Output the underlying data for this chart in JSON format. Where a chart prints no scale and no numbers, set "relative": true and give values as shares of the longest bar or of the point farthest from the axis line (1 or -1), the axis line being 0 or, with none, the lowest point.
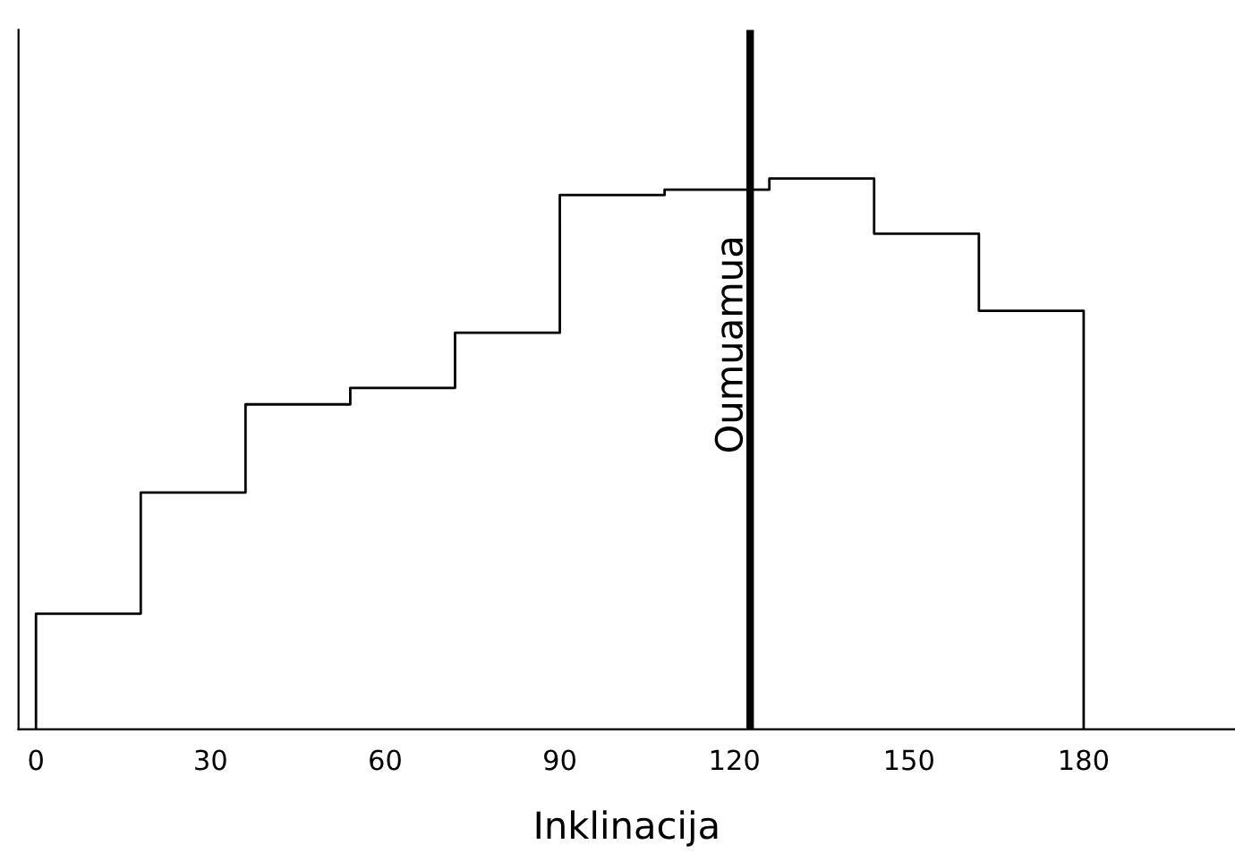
{
  "chart_data": {
    "type": "step",
    "xlabel": "Inklinacija",
    "x": [
      0,
      0,
      18,
      36,
      54,
      72,
      90,
      108,
      126,
      144,
      162,
      180
    ],
    "values": [
      0,
      0.21,
      0.43,
      0.59,
      0.62,
      0.72,
      0.97,
      0.98,
      1,
      0.9,
      0.76,
      0
    ],
    "relative": true,
    "color": "#000000",
    "xlim": [
      -3,
      206
    ],
    "xticks": [
      0,
      30,
      60,
      90,
      120,
      150,
      180
    ],
    "ref_lines": [
      {
        "axis": "x",
        "value": 122.7,
        "label": "Oumuamua",
        "color": "#000000"
      }
    ]
  }
}
